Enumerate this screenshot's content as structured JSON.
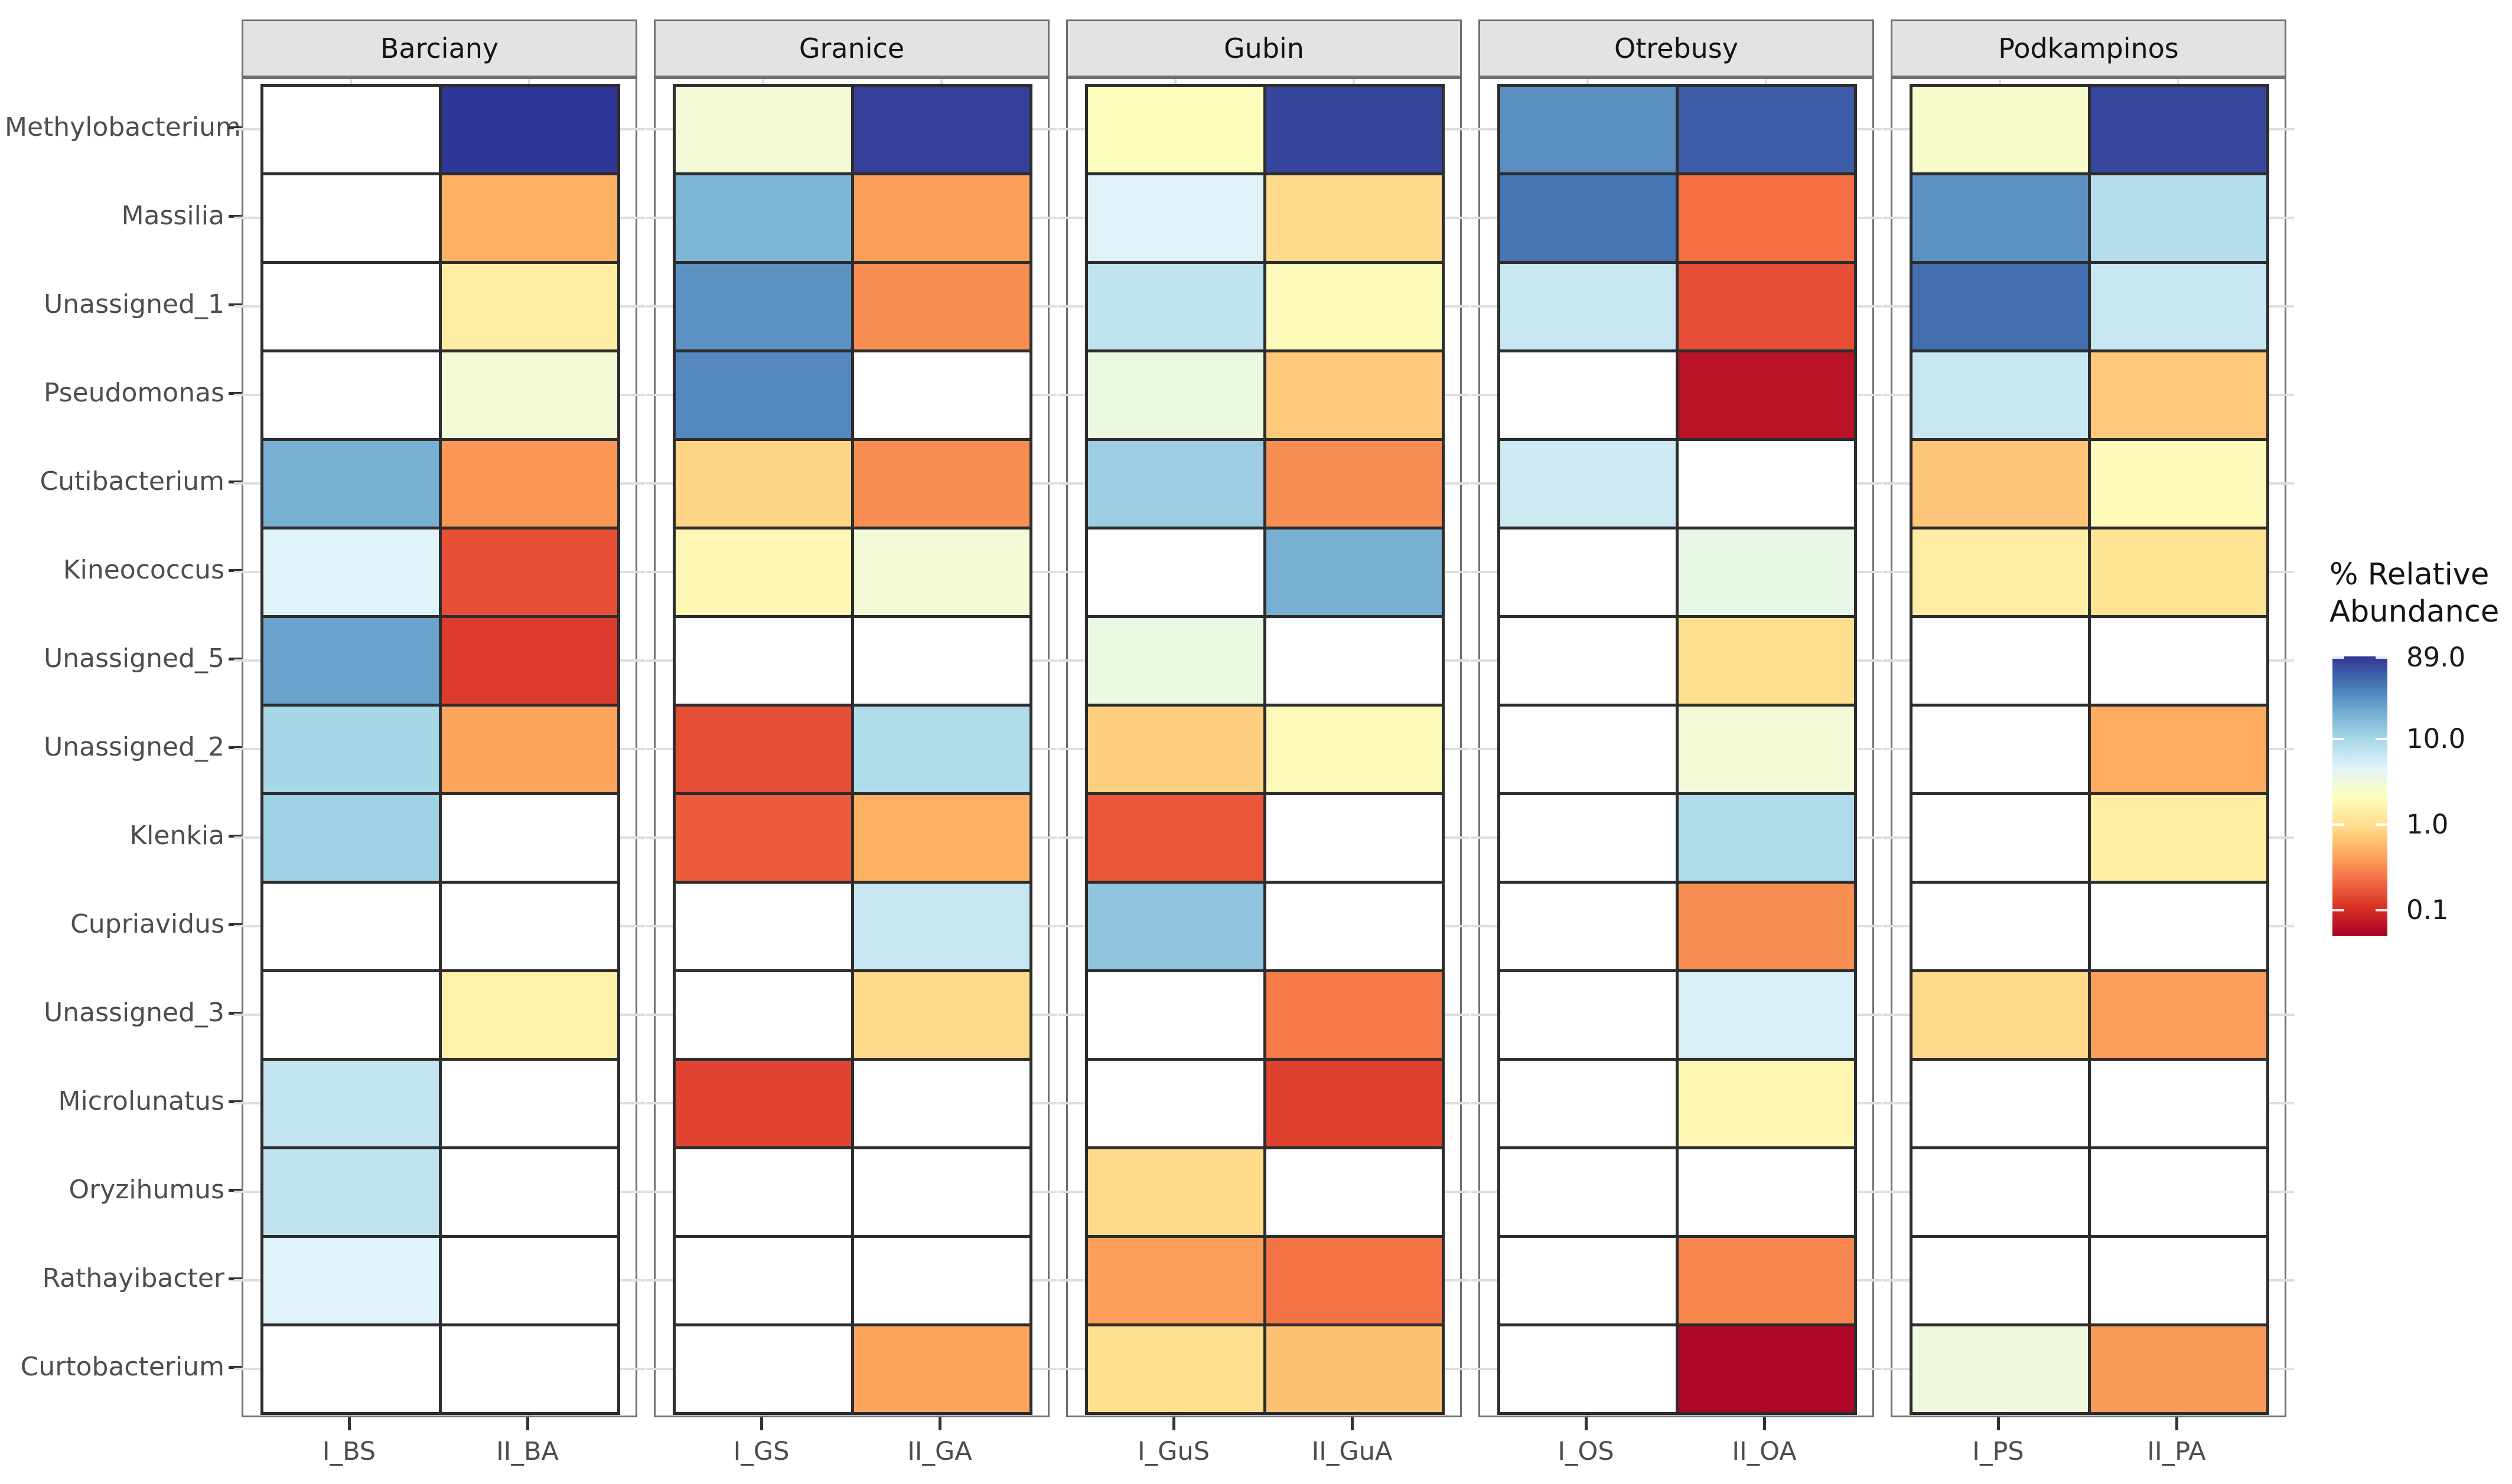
{
  "page": {
    "background": "#ffffff"
  },
  "chart_data": {
    "type": "heatmap",
    "ylabel": "",
    "xlabel": "",
    "y_categories": [
      "Methylobacterium",
      "Massilia",
      "Unassigned_1",
      "Pseudomonas",
      "Cutibacterium",
      "Kineococcus",
      "Unassigned_5",
      "Unassigned_2",
      "Klenkia",
      "Cupriavidus",
      "Unassigned_3",
      "Microlunatus",
      "Oryzihumus",
      "Rathayibacter",
      "Curtobacterium"
    ],
    "facets": [
      {
        "name": "Barciany",
        "x_labels": [
          "I_BS",
          "II_BA"
        ],
        "values": [
          [
            null,
            88
          ],
          [
            null,
            0.8
          ],
          [
            null,
            2.0
          ],
          [
            null,
            4.0
          ],
          [
            22,
            0.6
          ],
          [
            6.0,
            0.28
          ],
          [
            26,
            0.22
          ],
          [
            12,
            0.7
          ],
          [
            13,
            null
          ],
          [
            null,
            null
          ],
          [
            null,
            2.2
          ],
          [
            8.5,
            null
          ],
          [
            9.0,
            null
          ],
          [
            6.0,
            null
          ],
          [
            null,
            null
          ]
        ]
      },
      {
        "name": "Granice",
        "x_labels": [
          "I_GS",
          "II_GA"
        ],
        "values": [
          [
            4.0,
            80
          ],
          [
            20,
            0.65
          ],
          [
            32,
            0.55
          ],
          [
            36,
            null
          ],
          [
            1.3,
            0.55
          ],
          [
            2.5,
            4.0
          ],
          [
            null,
            null
          ],
          [
            0.28,
            11
          ],
          [
            0.32,
            0.8
          ],
          [
            null,
            8.0
          ],
          [
            null,
            1.4
          ],
          [
            0.25,
            null
          ],
          [
            null,
            null
          ],
          [
            null,
            null
          ],
          [
            null,
            0.7
          ]
        ]
      },
      {
        "name": "Gubin",
        "x_labels": [
          "I_GuS",
          "II_GuA"
        ],
        "values": [
          [
            3.0,
            75
          ],
          [
            6.0,
            1.4
          ],
          [
            9.0,
            2.8
          ],
          [
            4.5,
            1.1
          ],
          [
            14,
            0.55
          ],
          [
            null,
            22
          ],
          [
            4.5,
            null
          ],
          [
            1.2,
            2.7
          ],
          [
            0.3,
            null
          ],
          [
            16,
            null
          ],
          [
            null,
            0.45
          ],
          [
            null,
            0.24
          ],
          [
            1.4,
            null
          ],
          [
            0.65,
            0.42
          ],
          [
            1.5,
            1.0
          ]
        ]
      },
      {
        "name": "Otrebusy",
        "x_labels": [
          "I_OS",
          "II_OA"
        ],
        "values": [
          [
            33,
            60
          ],
          [
            44,
            0.4
          ],
          [
            8.0,
            0.28
          ],
          [
            null,
            0.13
          ],
          [
            7.5,
            null
          ],
          [
            null,
            4.8
          ],
          [
            null,
            1.5
          ],
          [
            null,
            4.0
          ],
          [
            null,
            11
          ],
          [
            null,
            0.55
          ],
          [
            null,
            6.5
          ],
          [
            null,
            2.5
          ],
          [
            null,
            null
          ],
          [
            null,
            0.5
          ],
          [
            null,
            0.11
          ]
        ]
      },
      {
        "name": "Podkampinos",
        "x_labels": [
          "I_PS",
          "II_PA"
        ],
        "values": [
          [
            3.5,
            74
          ],
          [
            32,
            10.5
          ],
          [
            48,
            8.0
          ],
          [
            8.0,
            1.1
          ],
          [
            1.05,
            2.8
          ],
          [
            2.0,
            1.6
          ],
          [
            null,
            null
          ],
          [
            null,
            0.75
          ],
          [
            null,
            2.0
          ],
          [
            null,
            null
          ],
          [
            1.4,
            0.65
          ],
          [
            null,
            null
          ],
          [
            null,
            null
          ],
          [
            null,
            null
          ],
          [
            4.3,
            0.62
          ]
        ]
      }
    ],
    "legend": {
      "title": "% Relative\nAbundance",
      "position": "right",
      "scale": "log10",
      "value_domain": [
        0.1,
        89
      ],
      "tick_values": [
        89,
        10,
        1,
        0.1
      ],
      "tick_labels": [
        "89.0",
        "10.0",
        "1.0",
        "0.1"
      ],
      "palette_low_to_high": [
        "#a50026",
        "#d73027",
        "#f46d43",
        "#fdae61",
        "#fee090",
        "#ffffbf",
        "#e0f3f8",
        "#abd9e9",
        "#74add1",
        "#4575b4",
        "#313695"
      ],
      "na_color": "#ffffff"
    },
    "grid": true
  }
}
